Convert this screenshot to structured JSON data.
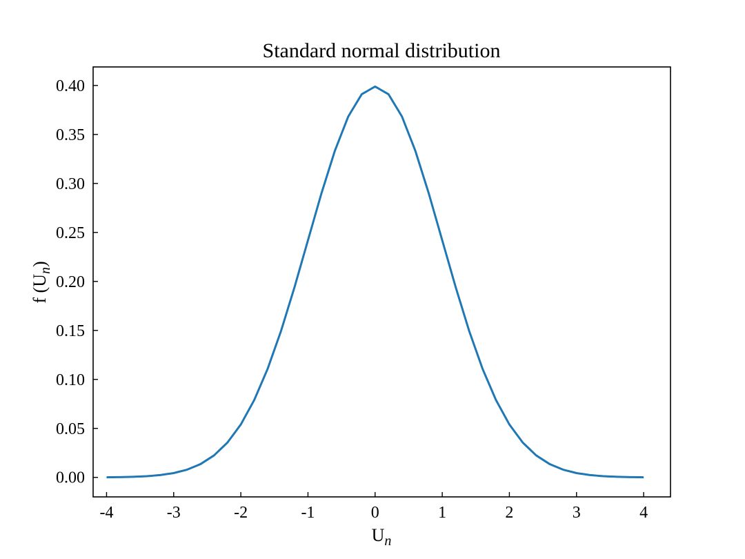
{
  "chart_data": {
    "type": "line",
    "title": "Standard normal distribution",
    "xlabel": {
      "main": "U",
      "sub": "n"
    },
    "ylabel": {
      "prefix": "f (U",
      "sub": "n",
      "suffix": ")"
    },
    "xlim": [
      -4.2,
      4.4
    ],
    "ylim": [
      -0.0199,
      0.4189
    ],
    "xticks": [
      -4,
      -3,
      -2,
      -1,
      0,
      1,
      2,
      3,
      4
    ],
    "xtick_labels": [
      "-4",
      "-3",
      "-2",
      "-1",
      "0",
      "1",
      "2",
      "3",
      "4"
    ],
    "yticks": [
      0.0,
      0.05,
      0.1,
      0.15,
      0.2,
      0.25,
      0.3,
      0.35,
      0.4
    ],
    "ytick_labels": [
      "0.00",
      "0.05",
      "0.10",
      "0.15",
      "0.20",
      "0.25",
      "0.30",
      "0.35",
      "0.40"
    ],
    "grid": false,
    "series": [
      {
        "color": "#1f77b4",
        "x": [
          -4.0,
          -3.8,
          -3.6,
          -3.4,
          -3.2,
          -3.0,
          -2.8,
          -2.6,
          -2.4,
          -2.2,
          -2.0,
          -1.8,
          -1.6,
          -1.4,
          -1.2,
          -1.0,
          -0.8,
          -0.6,
          -0.4,
          -0.2,
          0.0,
          0.2,
          0.4,
          0.6,
          0.8,
          1.0,
          1.2,
          1.4,
          1.6,
          1.8,
          2.0,
          2.2,
          2.4,
          2.6,
          2.8,
          3.0,
          3.2,
          3.4,
          3.6,
          3.8,
          4.0
        ],
        "y": [
          0.0001,
          0.0003,
          0.0006,
          0.0012,
          0.0024,
          0.0044,
          0.0079,
          0.0136,
          0.0224,
          0.0355,
          0.054,
          0.079,
          0.1109,
          0.1497,
          0.1942,
          0.242,
          0.2897,
          0.3332,
          0.3683,
          0.391,
          0.3989,
          0.391,
          0.3683,
          0.3332,
          0.2897,
          0.242,
          0.1942,
          0.1497,
          0.1109,
          0.079,
          0.054,
          0.0355,
          0.0224,
          0.0136,
          0.0079,
          0.0044,
          0.0024,
          0.0012,
          0.0006,
          0.0003,
          0.0001
        ]
      }
    ]
  }
}
